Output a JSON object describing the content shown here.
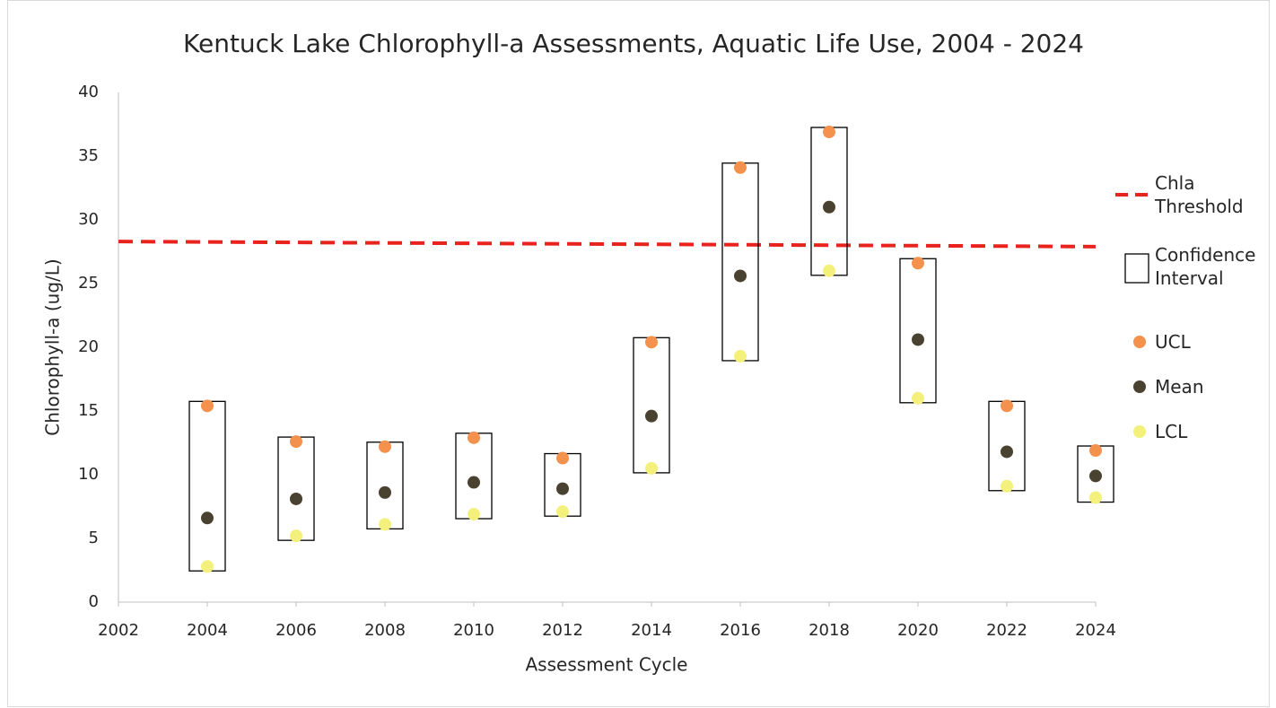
{
  "chart_data": {
    "type": "scatter",
    "title": "Kentuck Lake Chlorophyll-a Assessments, Aquatic Life Use, 2004 - 2024",
    "xlabel": "Assessment Cycle",
    "ylabel": "Chlorophyll-a (ug/L)",
    "x": [
      2004,
      2006,
      2008,
      2010,
      2012,
      2014,
      2016,
      2018,
      2020,
      2022,
      2024
    ],
    "xlim": [
      2002,
      2024
    ],
    "xticks": [
      2002,
      2004,
      2006,
      2008,
      2010,
      2012,
      2014,
      2016,
      2018,
      2020,
      2022,
      2024
    ],
    "ylim": [
      0,
      40
    ],
    "yticks": [
      0,
      5,
      10,
      15,
      20,
      25,
      30,
      35,
      40
    ],
    "grid": false,
    "legend": "right",
    "threshold": {
      "name": "Chla Threshold",
      "color": "#e8231e",
      "x": [
        2002,
        2024
      ],
      "values": [
        28.3,
        27.9
      ]
    },
    "interval": {
      "name": "Confidence Interval",
      "color": "#000000"
    },
    "series": [
      {
        "name": "UCL",
        "color": "#f4914d",
        "values": [
          15.4,
          12.6,
          12.2,
          12.9,
          11.3,
          20.4,
          34.1,
          36.9,
          26.6,
          15.4,
          11.9
        ]
      },
      {
        "name": "Mean",
        "color": "#4a4230",
        "values": [
          6.6,
          8.1,
          8.6,
          9.4,
          8.9,
          14.6,
          25.6,
          31.0,
          20.6,
          11.8,
          9.9
        ]
      },
      {
        "name": "LCL",
        "color": "#f3f07c",
        "values": [
          2.8,
          5.2,
          6.1,
          6.9,
          7.1,
          10.5,
          19.3,
          26.0,
          16.0,
          9.1,
          8.2
        ]
      }
    ]
  }
}
